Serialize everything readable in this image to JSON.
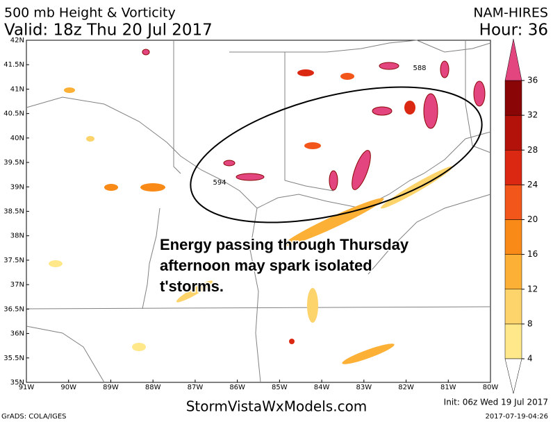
{
  "header": {
    "title": "500 mb Height & Vorticity",
    "valid": "Valid: 18z Thu 20 Jul 2017",
    "model": "NAM-HIRES",
    "hour": "Hour: 36"
  },
  "map": {
    "lat_ticks": [
      {
        "value": 35,
        "label": "35N"
      },
      {
        "value": 35.5,
        "label": "35.5N"
      },
      {
        "value": 36,
        "label": "36N"
      },
      {
        "value": 36.5,
        "label": "36.5N"
      },
      {
        "value": 37,
        "label": "37N"
      },
      {
        "value": 37.5,
        "label": "37.5N"
      },
      {
        "value": 38,
        "label": "38N"
      },
      {
        "value": 38.5,
        "label": "38.5N"
      },
      {
        "value": 39,
        "label": "39N"
      },
      {
        "value": 39.5,
        "label": "39.5N"
      },
      {
        "value": 40,
        "label": "40N"
      },
      {
        "value": 40.5,
        "label": "40.5N"
      },
      {
        "value": 41,
        "label": "41N"
      },
      {
        "value": 41.5,
        "label": "41.5N"
      },
      {
        "value": 42,
        "label": "42N"
      }
    ],
    "lon_ticks": [
      {
        "value": -91,
        "label": "91W"
      },
      {
        "value": -90,
        "label": "90W"
      },
      {
        "value": -89,
        "label": "89W"
      },
      {
        "value": -88,
        "label": "88W"
      },
      {
        "value": -87,
        "label": "87W"
      },
      {
        "value": -86,
        "label": "86W"
      },
      {
        "value": -85,
        "label": "85W"
      },
      {
        "value": -84,
        "label": "84W"
      },
      {
        "value": -83,
        "label": "83W"
      },
      {
        "value": -82,
        "label": "82W"
      },
      {
        "value": -81,
        "label": "81W"
      },
      {
        "value": -80,
        "label": "80W"
      }
    ],
    "contour_labels": [
      "594",
      "588"
    ],
    "annotation": [
      "Energy passing through Thursday",
      "afternoon may spark isolated",
      "t'storms."
    ]
  },
  "colorbar": {
    "levels": [
      4,
      8,
      12,
      16,
      20,
      24,
      28,
      32,
      36
    ],
    "colors": [
      "#fee889",
      "#fdd36b",
      "#fcb035",
      "#f98a18",
      "#f2561b",
      "#db2812",
      "#b3120a",
      "#8a0505"
    ],
    "over_color": "#e3467f"
  },
  "footer": {
    "credit": "GrADS: COLA/IGES",
    "site": "StormVistaWxModels.com",
    "init": "Init: 06z Wed 19 Jul 2017",
    "timestamp": "2017-07-19-04:26"
  }
}
